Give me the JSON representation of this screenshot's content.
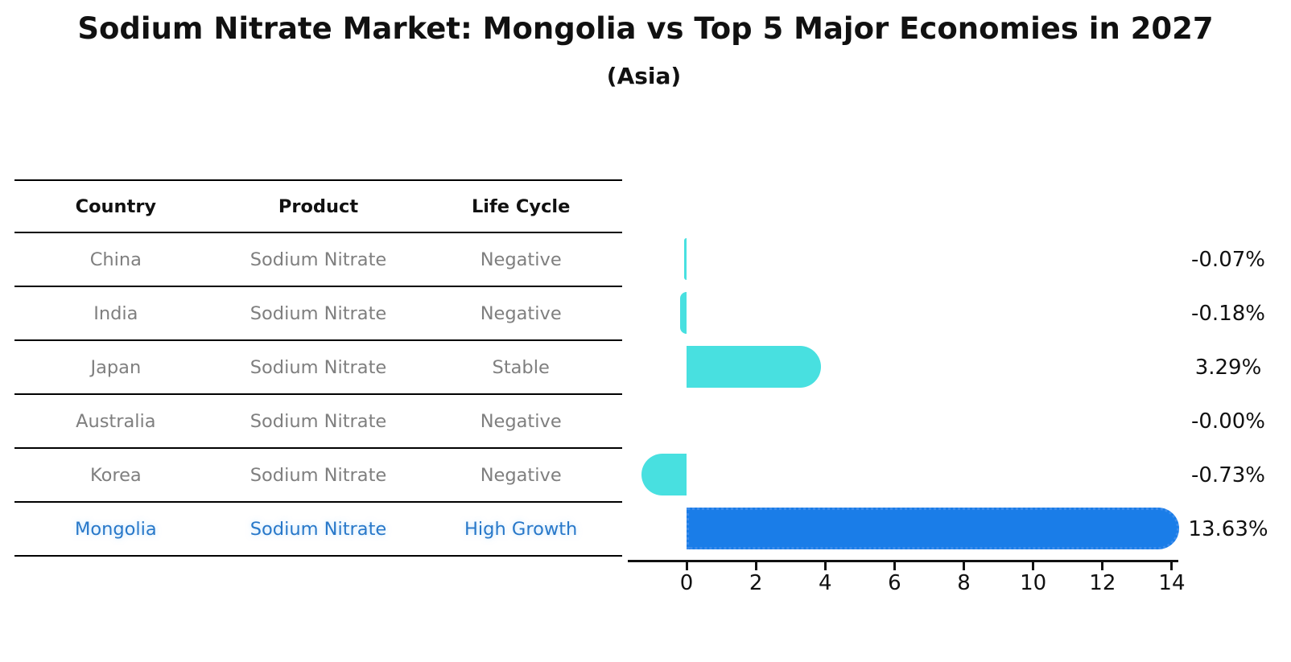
{
  "title": "Sodium Nitrate Market: Mongolia vs Top 5 Major Economies in 2027",
  "subtitle": "(Asia)",
  "table": {
    "headers": [
      "Country",
      "Product",
      "Life Cycle"
    ],
    "rows": [
      {
        "country": "China",
        "product": "Sodium Nitrate",
        "life_cycle": "Negative",
        "highlight": false
      },
      {
        "country": "India",
        "product": "Sodium Nitrate",
        "life_cycle": "Negative",
        "highlight": false
      },
      {
        "country": "Japan",
        "product": "Sodium Nitrate",
        "life_cycle": "Stable",
        "highlight": false
      },
      {
        "country": "Australia",
        "product": "Sodium Nitrate",
        "life_cycle": "Negative",
        "highlight": false
      },
      {
        "country": "Korea",
        "product": "Sodium Nitrate",
        "life_cycle": "Negative",
        "highlight": false
      },
      {
        "country": "Mongolia",
        "product": "Sodium Nitrate",
        "life_cycle": "High Growth",
        "highlight": true
      }
    ]
  },
  "chart_data": {
    "type": "bar",
    "orientation": "horizontal",
    "categories": [
      "China",
      "India",
      "Japan",
      "Australia",
      "Korea",
      "Mongolia"
    ],
    "values": [
      -0.07,
      -0.18,
      3.29,
      -0.0,
      -0.73,
      13.63
    ],
    "value_labels": [
      "-0.07%",
      "-0.18%",
      "3.29%",
      "-0.00%",
      "-0.73%",
      "13.63%"
    ],
    "highlight_index": 5,
    "xticks": [
      0,
      2,
      4,
      6,
      8,
      10,
      12,
      14
    ],
    "xlim": [
      -1.7,
      14.2
    ],
    "grid": false,
    "legend": false,
    "xlabel": "",
    "ylabel": ""
  },
  "colors": {
    "bar_base": "#48e0e0",
    "bar_highlight": "#1a7de8",
    "highlight_text": "#2878c9",
    "table_text_gray": "#7f7f7f",
    "axis_black": "#111111"
  }
}
